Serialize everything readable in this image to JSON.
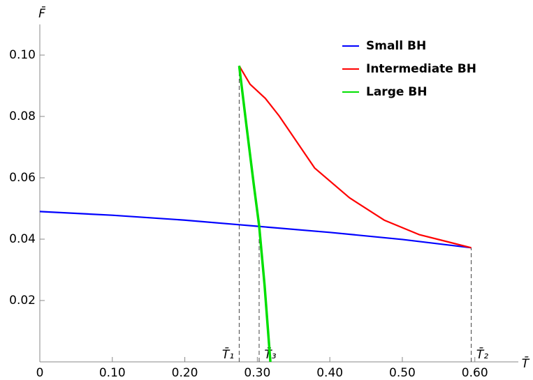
{
  "chart_data": {
    "type": "line",
    "xlabel": "T̄",
    "ylabel": "F̄",
    "xlim": [
      0,
      0.66
    ],
    "ylim": [
      0,
      0.11
    ],
    "xticks": [
      0,
      {
        "value": 0.1,
        "label": "0.10"
      },
      {
        "value": 0.2,
        "label": "0.20"
      },
      {
        "value": 0.3,
        "label": "0.30"
      },
      {
        "value": 0.4,
        "label": "0.40"
      },
      {
        "value": 0.5,
        "label": "0.50"
      },
      {
        "value": 0.6,
        "label": "0.60"
      }
    ],
    "yticks": [
      0.02,
      0.04,
      0.06,
      0.08,
      {
        "value": 0.1,
        "label": "0.10"
      }
    ],
    "legend": "upper right",
    "series": [
      {
        "name": "Small BH",
        "color": "#0000ff",
        "x": [
          0,
          0.1,
          0.2,
          0.275,
          0.3,
          0.4,
          0.5,
          0.595
        ],
        "values": [
          0.049,
          0.0478,
          0.0462,
          0.0447,
          0.0442,
          0.0422,
          0.0399,
          0.0372
        ]
      },
      {
        "name": "Intermediate BH",
        "color": "#ff0000",
        "x": [
          0.275,
          0.29,
          0.311,
          0.33,
          0.379,
          0.427,
          0.475,
          0.523,
          0.595
        ],
        "values": [
          0.0965,
          0.0905,
          0.0859,
          0.0802,
          0.0632,
          0.0535,
          0.0462,
          0.0415,
          0.0372
        ]
      },
      {
        "name": "Large BH",
        "color": "#00e000",
        "x": [
          0.275,
          0.285,
          0.295,
          0.3025,
          0.31,
          0.318
        ],
        "values": [
          0.0965,
          0.077,
          0.058,
          0.0444,
          0.025,
          0
        ]
      }
    ],
    "markers": [
      {
        "label": "T̄₁",
        "x": 0.275,
        "y": 0.0965
      },
      {
        "label": "T̄₃",
        "x": 0.3025,
        "y": 0.0444
      },
      {
        "label": "T̄₂",
        "x": 0.595,
        "y": 0.0372
      }
    ]
  }
}
